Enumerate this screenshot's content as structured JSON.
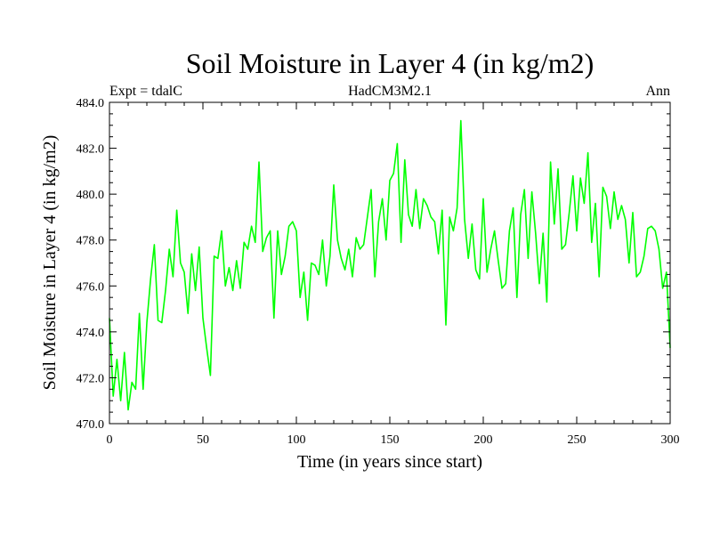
{
  "chart_data": {
    "type": "line",
    "title": "Soil Moisture in Layer 4 (in kg/m2)",
    "subtitle_left": "Expt = tdalC",
    "subtitle_center": "HadCM3M2.1",
    "subtitle_right": "Ann",
    "xlabel": "Time (in years since start)",
    "ylabel": "Soil Moisture in Layer 4 (in kg/m2)",
    "xlim": [
      0,
      300
    ],
    "ylim": [
      470,
      484
    ],
    "xticks": [
      0,
      50,
      100,
      150,
      200,
      250,
      300
    ],
    "xtick_labels": [
      "0",
      "50",
      "100",
      "150",
      "200",
      "250",
      "300"
    ],
    "yticks": [
      470,
      472,
      474,
      476,
      478,
      480,
      482,
      484
    ],
    "ytick_labels": [
      "470.0",
      "472.0",
      "474.0",
      "476.0",
      "478.0",
      "480.0",
      "482.0",
      "484.0"
    ],
    "line_color": "#00ff00",
    "series": [
      {
        "name": "Soil Moisture Layer 4",
        "x": [
          0,
          2,
          4,
          6,
          8,
          10,
          12,
          14,
          16,
          18,
          20,
          22,
          24,
          26,
          28,
          30,
          32,
          34,
          36,
          38,
          40,
          42,
          44,
          46,
          48,
          50,
          52,
          54,
          56,
          58,
          60,
          62,
          64,
          66,
          68,
          70,
          72,
          74,
          76,
          78,
          80,
          82,
          84,
          86,
          88,
          90,
          92,
          94,
          96,
          98,
          100,
          102,
          104,
          106,
          108,
          110,
          112,
          114,
          116,
          118,
          120,
          122,
          124,
          126,
          128,
          130,
          132,
          134,
          136,
          138,
          140,
          142,
          144,
          146,
          148,
          150,
          152,
          154,
          156,
          158,
          160,
          162,
          164,
          166,
          168,
          170,
          172,
          174,
          176,
          178,
          180,
          182,
          184,
          186,
          188,
          190,
          192,
          194,
          196,
          198,
          200,
          202,
          204,
          206,
          208,
          210,
          212,
          214,
          216,
          218,
          220,
          222,
          224,
          226,
          228,
          230,
          232,
          234,
          236,
          238,
          240,
          242,
          244,
          246,
          248,
          250,
          252,
          254,
          256,
          258,
          260,
          262,
          264,
          266,
          268,
          270,
          272,
          274,
          276,
          278,
          280,
          282,
          284,
          286,
          288,
          290,
          292,
          294,
          296,
          298,
          300
        ],
        "values": [
          474.6,
          471.2,
          472.8,
          471.0,
          473.1,
          470.6,
          471.8,
          471.5,
          474.8,
          471.5,
          474.4,
          476.3,
          477.8,
          474.5,
          474.4,
          475.8,
          477.6,
          476.4,
          479.3,
          477.0,
          476.6,
          474.8,
          477.4,
          475.8,
          477.7,
          474.6,
          473.3,
          472.1,
          477.3,
          477.2,
          478.4,
          476.0,
          476.8,
          475.8,
          477.1,
          475.9,
          477.9,
          477.6,
          478.6,
          477.9,
          481.4,
          477.5,
          478.1,
          478.4,
          474.6,
          478.4,
          476.5,
          477.3,
          478.6,
          478.8,
          478.4,
          475.5,
          476.6,
          474.5,
          477.0,
          476.9,
          476.5,
          478.0,
          476.0,
          477.3,
          480.4,
          478.0,
          477.2,
          476.7,
          477.6,
          476.4,
          478.1,
          477.6,
          477.8,
          479.0,
          480.2,
          476.4,
          478.8,
          479.8,
          478.0,
          480.6,
          480.9,
          482.2,
          477.9,
          481.5,
          479.1,
          478.6,
          480.2,
          478.5,
          479.8,
          479.5,
          479.0,
          478.8,
          477.4,
          479.3,
          474.3,
          479.0,
          478.4,
          479.4,
          483.2,
          478.9,
          477.2,
          478.7,
          476.7,
          476.3,
          479.8,
          476.6,
          477.6,
          478.4,
          477.1,
          475.9,
          476.1,
          478.4,
          479.4,
          475.5,
          479.1,
          480.2,
          477.2,
          480.1,
          478.3,
          476.1,
          478.3,
          475.3,
          481.4,
          478.7,
          481.1,
          477.6,
          477.8,
          479.2,
          480.8,
          478.4,
          480.7,
          479.6,
          481.8,
          477.9,
          479.6,
          476.4,
          480.3,
          479.9,
          478.5,
          480.1,
          478.9,
          479.5,
          478.9,
          477.0,
          479.2,
          476.4,
          476.6,
          477.3,
          478.5,
          478.6,
          478.4,
          477.6,
          475.9,
          476.6,
          473.3
        ]
      }
    ]
  }
}
